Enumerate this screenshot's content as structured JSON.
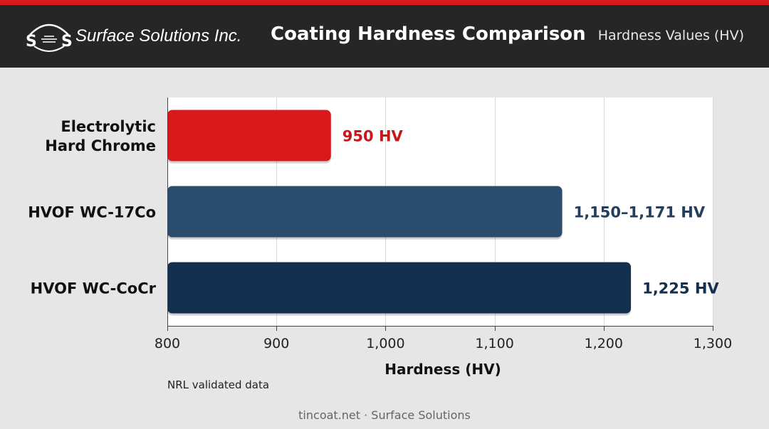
{
  "header": {
    "brand": "Surface Solutions Inc.",
    "logo_letters": "S S",
    "title": "Coating Hardness Comparison",
    "subtitle": "Hardness Values (HV)"
  },
  "colors": {
    "accent": "#d7191c",
    "header_bg": "#262626",
    "chrome": "#d7191c",
    "wc17co": "#2a4d6e",
    "wccocr": "#14304f"
  },
  "chart_data": {
    "type": "bar",
    "orientation": "horizontal",
    "title": "Coating Hardness Comparison",
    "xlabel": "Hardness (HV)",
    "xlim": [
      800,
      1300
    ],
    "ticks": [
      800,
      900,
      1000,
      1100,
      1200,
      1300
    ],
    "tick_labels": [
      "800",
      "900",
      "1,000",
      "1,100",
      "1,200",
      "1,300"
    ],
    "grid": true,
    "bars": [
      {
        "category": "Electrolytic Hard Chrome",
        "label_lines": [
          "Electrolytic",
          "Hard Chrome"
        ],
        "value": 950,
        "value_label": "950 HV",
        "color": "#d7191c",
        "label_color": "#c8161a"
      },
      {
        "category": "HVOF WC-17Co",
        "label_lines": [
          "HVOF WC-17Co"
        ],
        "value": 1162,
        "range": [
          1150,
          1171
        ],
        "value_label": "1,150–1,171 HV",
        "color": "#2a4d6e",
        "label_color": "#243f5e"
      },
      {
        "category": "HVOF WC-CoCr",
        "label_lines": [
          "HVOF WC-CoCr"
        ],
        "value": 1225,
        "value_label": "1,225 HV",
        "color": "#14304f",
        "label_color": "#14304f"
      }
    ]
  },
  "note": "NRL validated data",
  "footer": "tincoat.net · Surface Solutions"
}
